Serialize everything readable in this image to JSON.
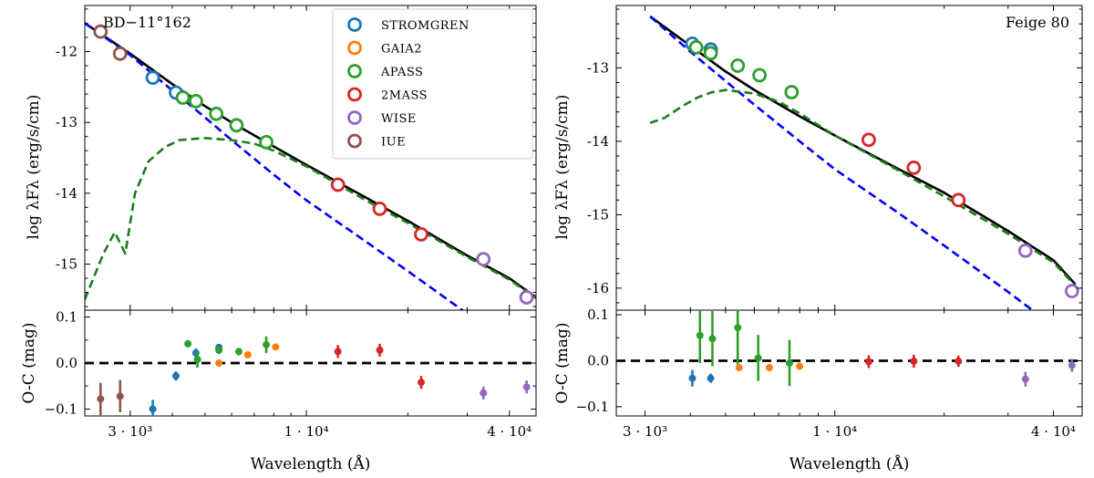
{
  "chart_data": [
    {
      "type": "line",
      "title": "BD−11°162",
      "xlabel": "Wavelength (Å)",
      "ylabel": "log λFλ (erg/s/cm)",
      "x_scale": "log",
      "xlim": [
        2200,
        48000
      ],
      "ylim": [
        -15.65,
        -11.35
      ],
      "x_ticks": [
        {
          "value": 3000,
          "label": "3 · 10³"
        },
        {
          "value": 10000,
          "label": "1 · 10⁴"
        },
        {
          "value": 40000,
          "label": "4 · 10⁴"
        }
      ],
      "y_ticks": [
        {
          "value": -12,
          "label": "-12"
        },
        {
          "value": -13,
          "label": "-13"
        },
        {
          "value": -14,
          "label": "-14"
        },
        {
          "value": -15,
          "label": "-15"
        }
      ],
      "legend": {
        "position": "top-right",
        "entries": [
          {
            "name": "STROMGREN",
            "color": "#1f77b4"
          },
          {
            "name": "GAIA2",
            "color": "#ff7f0e"
          },
          {
            "name": "APASS",
            "color": "#2ca02c"
          },
          {
            "name": "2MASS",
            "color": "#d62728"
          },
          {
            "name": "WISE",
            "color": "#9467bd"
          },
          {
            "name": "IUE",
            "color": "#8c564b"
          }
        ]
      },
      "series": [
        {
          "name": "total model",
          "style": "solid",
          "color": "#000000",
          "x": [
            2200,
            3000,
            4000,
            5000,
            6000,
            8000,
            10000,
            15000,
            20000,
            30000,
            40000,
            48000
          ],
          "y": [
            -11.6,
            -12.03,
            -12.46,
            -12.77,
            -13.0,
            -13.34,
            -13.6,
            -14.06,
            -14.39,
            -14.88,
            -15.2,
            -15.47
          ]
        },
        {
          "name": "hot component",
          "style": "dashed",
          "color": "#0000ff",
          "x": [
            2200,
            3000,
            4000,
            5000,
            6000,
            8000,
            10000,
            15000,
            20000,
            25000,
            30000
          ],
          "y": [
            -11.6,
            -12.05,
            -12.55,
            -12.93,
            -13.25,
            -13.74,
            -14.1,
            -14.68,
            -15.1,
            -15.43,
            -15.7
          ]
        },
        {
          "name": "cool component",
          "style": "dashed",
          "color": "#1a7f1a",
          "x": [
            2200,
            2500,
            2700,
            2900,
            3100,
            3400,
            3800,
            4200,
            5000,
            6000,
            7000,
            8000,
            10000,
            15000,
            20000,
            30000,
            40000,
            48000
          ],
          "y": [
            -15.5,
            -14.85,
            -14.55,
            -14.85,
            -14.0,
            -13.55,
            -13.35,
            -13.25,
            -13.22,
            -13.25,
            -13.3,
            -13.4,
            -13.62,
            -14.1,
            -14.42,
            -14.9,
            -15.22,
            -15.48
          ]
        }
      ],
      "photometry": [
        {
          "survey": "IUE",
          "x": [
            2450,
            2800
          ],
          "y": [
            -11.72,
            -12.03
          ],
          "color": "#8c564b"
        },
        {
          "survey": "STROMGREN",
          "x": [
            3500,
            4100
          ],
          "y": [
            -12.37,
            -12.58
          ],
          "color": "#1f77b4"
        },
        {
          "survey": "APASS",
          "x": [
            4300,
            4700,
            5400,
            6200,
            7600
          ],
          "y": [
            -12.65,
            -12.7,
            -12.88,
            -13.04,
            -13.28
          ],
          "color": "#2ca02c"
        },
        {
          "survey": "2MASS",
          "x": [
            12400,
            16500,
            21900
          ],
          "y": [
            -13.88,
            -14.22,
            -14.58
          ],
          "color": "#d62728"
        },
        {
          "survey": "WISE",
          "x": [
            33500,
            45000
          ],
          "y": [
            -14.93,
            -15.47
          ],
          "color": "#9467bd"
        }
      ],
      "residuals": {
        "ylabel": "O-C (mag)",
        "ylim": [
          -0.115,
          0.115
        ],
        "y_ticks": [
          {
            "value": 0.1,
            "label": "0.1"
          },
          {
            "value": 0.0,
            "label": "0.0"
          },
          {
            "value": -0.1,
            "label": "−0.1"
          }
        ],
        "points": [
          {
            "survey": "IUE",
            "x": 2450,
            "y": -0.078,
            "err": 0.035,
            "color": "#8c564b"
          },
          {
            "survey": "IUE",
            "x": 2800,
            "y": -0.072,
            "err": 0.035,
            "color": "#8c564b"
          },
          {
            "survey": "STROMGREN",
            "x": 3500,
            "y": -0.1,
            "err": 0.02,
            "color": "#1f77b4"
          },
          {
            "survey": "STROMGREN",
            "x": 4100,
            "y": -0.028,
            "err": 0.01,
            "color": "#1f77b4"
          },
          {
            "survey": "STROMGREN",
            "x": 4700,
            "y": 0.022,
            "err": 0.01,
            "color": "#1f77b4"
          },
          {
            "survey": "STROMGREN",
            "x": 5500,
            "y": 0.034,
            "err": 0.006,
            "color": "#1f77b4"
          },
          {
            "survey": "APASS",
            "x": 4450,
            "y": 0.042,
            "err": 0.008,
            "color": "#2ca02c"
          },
          {
            "survey": "APASS",
            "x": 4750,
            "y": 0.008,
            "err": 0.018,
            "color": "#2ca02c"
          },
          {
            "survey": "APASS",
            "x": 5500,
            "y": 0.028,
            "err": 0.008,
            "color": "#2ca02c"
          },
          {
            "survey": "APASS",
            "x": 6300,
            "y": 0.025,
            "err": 0.008,
            "color": "#2ca02c"
          },
          {
            "survey": "APASS",
            "x": 7600,
            "y": 0.04,
            "err": 0.018,
            "color": "#2ca02c"
          },
          {
            "survey": "GAIA2",
            "x": 5500,
            "y": 0.0,
            "err": 0.0,
            "color": "#ff7f0e"
          },
          {
            "survey": "GAIA2",
            "x": 6700,
            "y": 0.018,
            "err": 0.0,
            "color": "#ff7f0e"
          },
          {
            "survey": "GAIA2",
            "x": 8100,
            "y": 0.035,
            "err": 0.0,
            "color": "#ff7f0e"
          },
          {
            "survey": "2MASS",
            "x": 12400,
            "y": 0.025,
            "err": 0.014,
            "color": "#d62728"
          },
          {
            "survey": "2MASS",
            "x": 16500,
            "y": 0.028,
            "err": 0.014,
            "color": "#d62728"
          },
          {
            "survey": "2MASS",
            "x": 21900,
            "y": -0.042,
            "err": 0.014,
            "color": "#d62728"
          },
          {
            "survey": "WISE",
            "x": 33500,
            "y": -0.065,
            "err": 0.014,
            "color": "#9467bd"
          },
          {
            "survey": "WISE",
            "x": 45000,
            "y": -0.052,
            "err": 0.014,
            "color": "#9467bd"
          }
        ]
      }
    },
    {
      "type": "line",
      "title": "Feige 80",
      "xlabel": "Wavelength (Å)",
      "ylabel": "log λFλ (erg/s/cm)",
      "x_scale": "log",
      "xlim": [
        2500,
        48000
      ],
      "ylim": [
        -16.3,
        -12.15
      ],
      "x_ticks": [
        {
          "value": 3000,
          "label": "3 · 10³"
        },
        {
          "value": 10000,
          "label": "1 · 10⁴"
        },
        {
          "value": 40000,
          "label": "4 · 10⁴"
        }
      ],
      "y_ticks": [
        {
          "value": -13,
          "label": "-13"
        },
        {
          "value": -14,
          "label": "-14"
        },
        {
          "value": -15,
          "label": "-15"
        },
        {
          "value": -16,
          "label": "-16"
        }
      ],
      "series": [
        {
          "name": "total model",
          "style": "solid",
          "color": "#000000",
          "x": [
            3100,
            4000,
            5000,
            6000,
            8000,
            10000,
            15000,
            20000,
            30000,
            40000,
            46000
          ],
          "y": [
            -12.3,
            -12.7,
            -13.05,
            -13.3,
            -13.66,
            -13.92,
            -14.38,
            -14.7,
            -15.22,
            -15.62,
            -15.95
          ]
        },
        {
          "name": "hot component",
          "style": "dashed",
          "color": "#0000ff",
          "x": [
            3100,
            4000,
            5000,
            6000,
            8000,
            10000,
            15000,
            20000,
            30000,
            35000
          ],
          "y": [
            -12.3,
            -12.78,
            -13.18,
            -13.5,
            -14.0,
            -14.38,
            -14.98,
            -15.42,
            -16.05,
            -16.3
          ]
        },
        {
          "name": "cool component",
          "style": "dashed",
          "color": "#1a7f1a",
          "x": [
            3100,
            3400,
            3800,
            4200,
            4600,
            5000,
            6000,
            7000,
            8000,
            10000,
            15000,
            20000,
            30000,
            40000,
            46000
          ],
          "y": [
            -13.75,
            -13.68,
            -13.52,
            -13.4,
            -13.33,
            -13.3,
            -13.35,
            -13.46,
            -13.62,
            -13.92,
            -14.4,
            -14.75,
            -15.26,
            -15.65,
            -15.97
          ]
        }
      ],
      "photometry": [
        {
          "survey": "STROMGREN",
          "x": [
            4050,
            4550
          ],
          "y": [
            -12.67,
            -12.75
          ],
          "color": "#1f77b4"
        },
        {
          "survey": "APASS",
          "x": [
            4150,
            4550,
            5400,
            6200,
            7600
          ],
          "y": [
            -12.72,
            -12.8,
            -12.97,
            -13.1,
            -13.33
          ],
          "color": "#2ca02c"
        },
        {
          "survey": "2MASS",
          "x": [
            12400,
            16500,
            21900
          ],
          "y": [
            -13.98,
            -14.36,
            -14.8
          ],
          "color": "#d62728"
        },
        {
          "survey": "WISE",
          "x": [
            33500,
            45000
          ],
          "y": [
            -15.49,
            -16.04
          ],
          "color": "#9467bd"
        }
      ],
      "residuals": {
        "ylabel": "O-C (mag)",
        "ylim": [
          -0.12,
          0.11
        ],
        "y_ticks": [
          {
            "value": 0.1,
            "label": "0.1"
          },
          {
            "value": 0.0,
            "label": "0.0"
          },
          {
            "value": -0.1,
            "label": "−0.1"
          }
        ],
        "points": [
          {
            "survey": "STROMGREN",
            "x": 4050,
            "y": -0.038,
            "err": 0.018,
            "color": "#1f77b4"
          },
          {
            "survey": "STROMGREN",
            "x": 4550,
            "y": -0.038,
            "err": 0.01,
            "color": "#1f77b4"
          },
          {
            "survey": "APASS",
            "x": 4250,
            "y": 0.055,
            "err": 0.06,
            "color": "#2ca02c"
          },
          {
            "survey": "APASS",
            "x": 4600,
            "y": 0.048,
            "err": 0.06,
            "color": "#2ca02c"
          },
          {
            "survey": "APASS",
            "x": 5400,
            "y": 0.072,
            "err": 0.08,
            "color": "#2ca02c"
          },
          {
            "survey": "APASS",
            "x": 6150,
            "y": 0.006,
            "err": 0.05,
            "color": "#2ca02c"
          },
          {
            "survey": "APASS",
            "x": 7500,
            "y": -0.005,
            "err": 0.05,
            "color": "#2ca02c"
          },
          {
            "survey": "GAIA2",
            "x": 5450,
            "y": -0.015,
            "err": 0.0,
            "color": "#ff7f0e"
          },
          {
            "survey": "GAIA2",
            "x": 6600,
            "y": -0.015,
            "err": 0.0,
            "color": "#ff7f0e"
          },
          {
            "survey": "GAIA2",
            "x": 8000,
            "y": -0.012,
            "err": 0.0,
            "color": "#ff7f0e"
          },
          {
            "survey": "2MASS",
            "x": 12400,
            "y": -0.002,
            "err": 0.014,
            "color": "#d62728"
          },
          {
            "survey": "2MASS",
            "x": 16500,
            "y": -0.001,
            "err": 0.014,
            "color": "#d62728"
          },
          {
            "survey": "2MASS",
            "x": 21900,
            "y": -0.001,
            "err": 0.012,
            "color": "#d62728"
          },
          {
            "survey": "WISE",
            "x": 33500,
            "y": -0.04,
            "err": 0.016,
            "color": "#9467bd"
          },
          {
            "survey": "WISE",
            "x": 45000,
            "y": -0.01,
            "err": 0.014,
            "color": "#9467bd"
          }
        ]
      }
    }
  ]
}
